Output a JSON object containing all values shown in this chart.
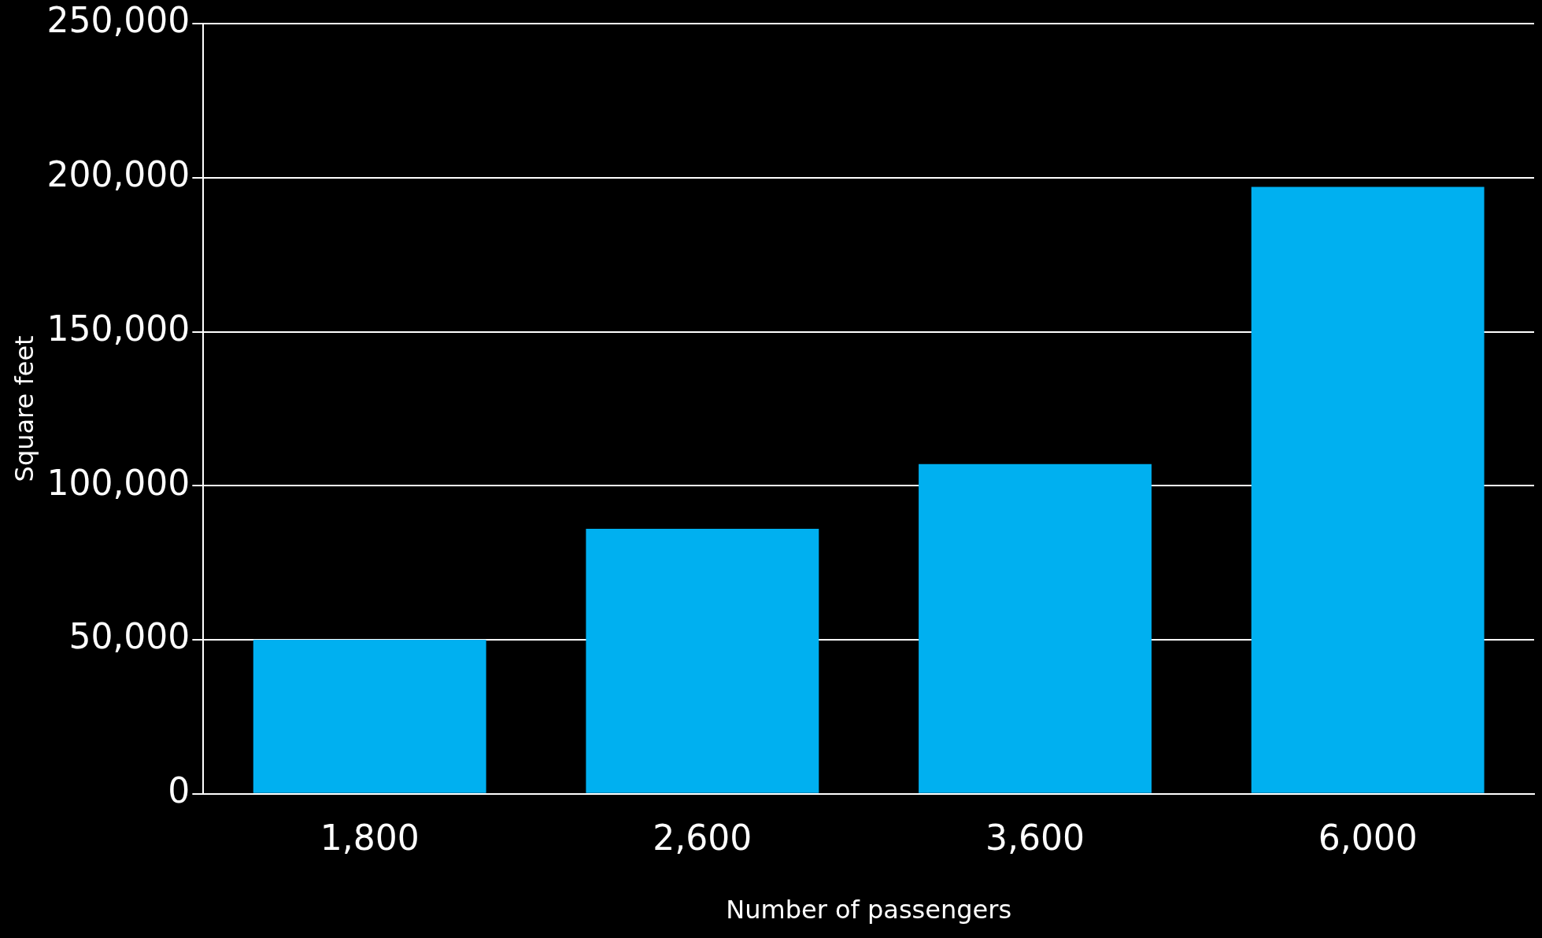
{
  "chart_data": {
    "type": "bar",
    "xlabel": "Number of passengers",
    "ylabel": "Square feet",
    "categories": [
      "1,800",
      "2,600",
      "3,600",
      "6,000"
    ],
    "values": [
      50000,
      86000,
      107000,
      197000
    ],
    "color": "#00b0f0",
    "ylim": [
      0,
      250000
    ],
    "yticks": [
      0,
      {
        "value": 50000,
        "label": "50,000"
      },
      {
        "value": 100000,
        "label": "100,000"
      },
      {
        "value": 150000,
        "label": "150,000"
      },
      {
        "value": 200000,
        "label": "200,000"
      },
      {
        "value": 250000,
        "label": "250,000"
      }
    ],
    "grid": "y",
    "legend": false
  }
}
